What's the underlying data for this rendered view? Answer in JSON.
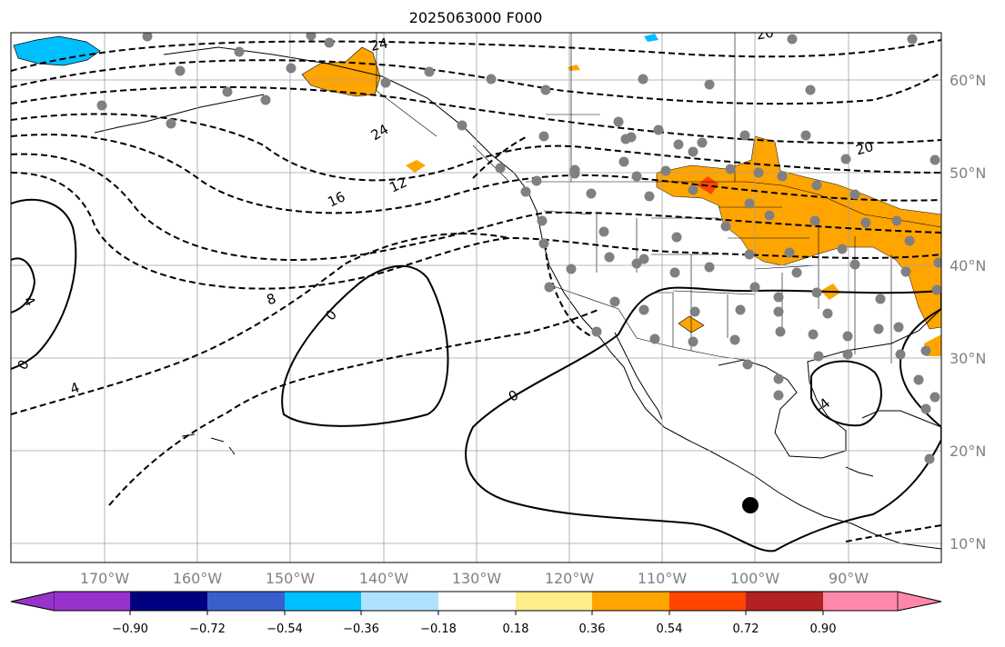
{
  "title": "2025063000 F000",
  "map": {
    "lon_range": [
      -180,
      -80
    ],
    "lat_range": [
      8,
      65
    ],
    "lon_labels": [
      "170°W",
      "160°W",
      "150°W",
      "140°W",
      "130°W",
      "120°W",
      "110°W",
      "100°W",
      "90°W"
    ],
    "lat_labels": [
      "60°N",
      "50°N",
      "40°N",
      "30°N",
      "20°N",
      "10°N"
    ],
    "grid_color": "#a0a0a0",
    "label_color": "#808080"
  },
  "contour_labels": [
    "24",
    "24",
    "20",
    "16",
    "12",
    "8",
    "4",
    "4",
    "0",
    "0",
    "0",
    "-4",
    "20"
  ],
  "colorbar": {
    "ticks": [
      "−0.90",
      "−0.72",
      "−0.54",
      "−0.36",
      "−0.18",
      "0.18",
      "0.36",
      "0.54",
      "0.72",
      "0.90"
    ],
    "colors": [
      "#9932cc",
      "#000080",
      "#3a5fcd",
      "#00bfff",
      "#b0e2ff",
      "#ffffff",
      "#ffee88",
      "#ffa500",
      "#ff4500",
      "#b22222",
      "#ff88aa"
    ]
  }
}
